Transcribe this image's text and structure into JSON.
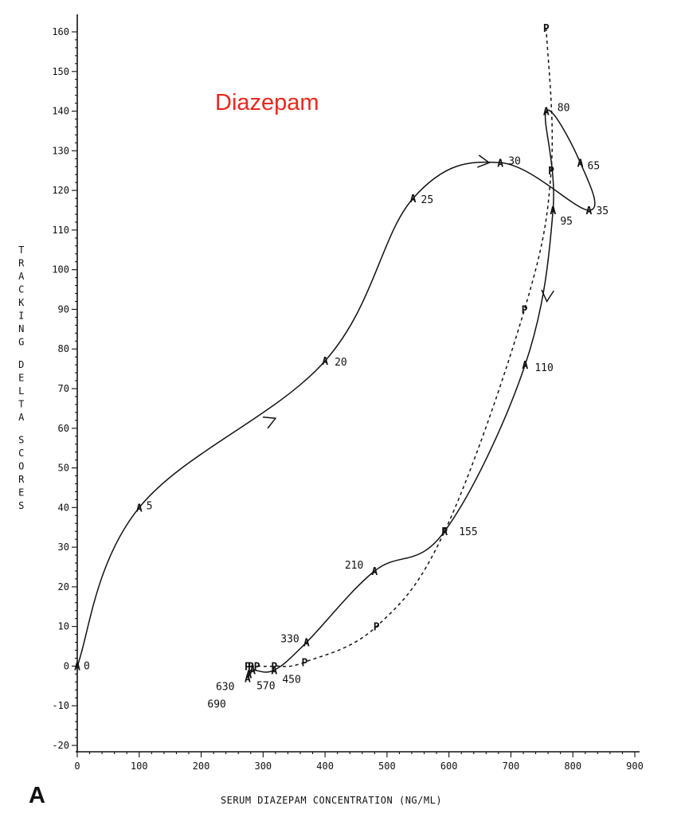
{
  "panel_letter": "A",
  "chart_data": {
    "type": "line",
    "annotation": "Diazepam",
    "annotation_color": "#e8281e",
    "xlabel": "SERUM DIAZEPAM CONCENTRATION (NG/ML)",
    "ylabel": "TRACKING DELTA SCORES",
    "xlim": [
      0,
      900
    ],
    "ylim": [
      -20,
      160
    ],
    "xticks": [
      0,
      100,
      200,
      300,
      400,
      500,
      600,
      700,
      800,
      900
    ],
    "yticks": [
      -20,
      -10,
      0,
      10,
      20,
      30,
      40,
      50,
      60,
      70,
      80,
      90,
      100,
      110,
      120,
      130,
      140,
      150,
      160
    ],
    "grid": false,
    "series": [
      {
        "marker": "A",
        "line_style": "solid",
        "points": [
          {
            "label": "0",
            "x": 0,
            "y": 0
          },
          {
            "label": "5",
            "x": 100,
            "y": 40
          },
          {
            "label": "20",
            "x": 400,
            "y": 77
          },
          {
            "label": "25",
            "x": 542,
            "y": 118
          },
          {
            "label": "30",
            "x": 683,
            "y": 127
          },
          {
            "label": "35",
            "x": 826,
            "y": 115
          },
          {
            "label": "65",
            "x": 812,
            "y": 127
          },
          {
            "label": "80",
            "x": 757,
            "y": 140
          },
          {
            "label": "95",
            "x": 768,
            "y": 115
          },
          {
            "label": "110",
            "x": 723,
            "y": 76
          },
          {
            "label": "155",
            "x": 593,
            "y": 34
          },
          {
            "label": "210",
            "x": 480,
            "y": 24
          },
          {
            "label": "330",
            "x": 370,
            "y": 6
          },
          {
            "label": "450",
            "x": 318,
            "y": -1
          },
          {
            "label": "570",
            "x": 283,
            "y": -1
          },
          {
            "label": "630",
            "x": 277,
            "y": -2
          },
          {
            "label": "690",
            "x": 275,
            "y": -3
          }
        ]
      },
      {
        "marker": "P",
        "line_style": "dashed",
        "points": [
          {
            "x": 757,
            "y": 161
          },
          {
            "x": 765,
            "y": 125
          },
          {
            "x": 722,
            "y": 90
          },
          {
            "x": 593,
            "y": 34
          },
          {
            "x": 483,
            "y": 10
          },
          {
            "x": 367,
            "y": 1
          },
          {
            "x": 318,
            "y": 0
          },
          {
            "x": 290,
            "y": 0
          },
          {
            "x": 280,
            "y": 0
          },
          {
            "x": 275,
            "y": 0
          }
        ]
      }
    ]
  }
}
